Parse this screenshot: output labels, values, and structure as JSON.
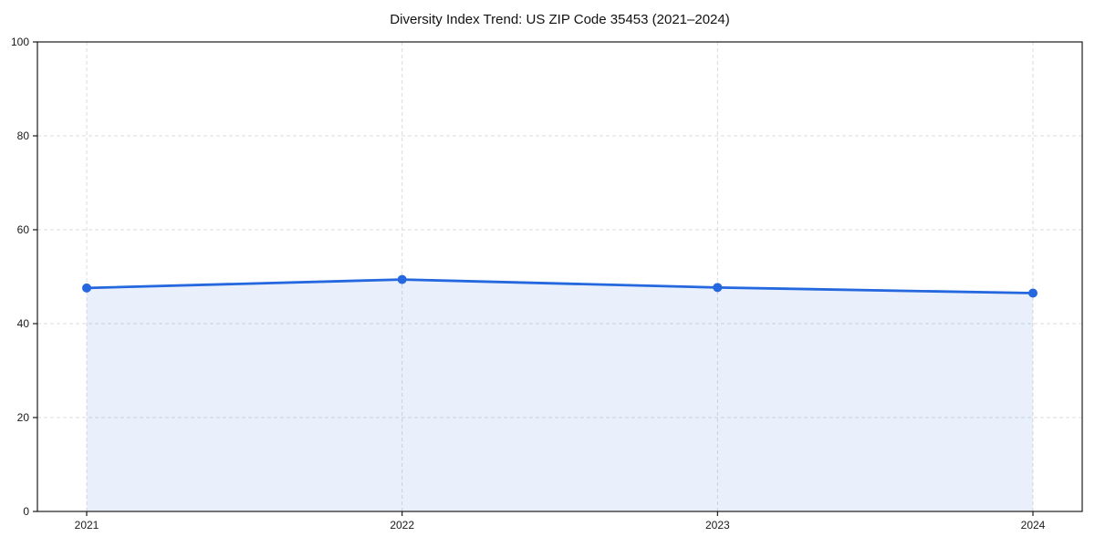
{
  "chart_data": {
    "type": "area",
    "title": "Diversity Index Trend: US ZIP Code 35453 (2021–2024)",
    "categories": [
      "2021",
      "2022",
      "2023",
      "2024"
    ],
    "series": [
      {
        "name": "Diversity Index",
        "values": [
          47.6,
          49.4,
          47.7,
          46.5
        ]
      }
    ],
    "xlabel": "",
    "ylabel": "",
    "ylim": [
      0,
      100
    ],
    "yticks": [
      0,
      20,
      40,
      60,
      80,
      100
    ],
    "grid": true,
    "grid_style": "dashed",
    "legend_position": "none",
    "marker": "circle",
    "style": {
      "line_color": "#2467df",
      "marker_color": "#2467df",
      "fill_color": "#2467df",
      "fill_opacity": 0.1,
      "grid_color": "#dbdbdb",
      "spine_color": "#1a1a1a",
      "tick_label_color": "#1a1a1a",
      "title_color": "#111111",
      "background": "#ffffff"
    }
  }
}
